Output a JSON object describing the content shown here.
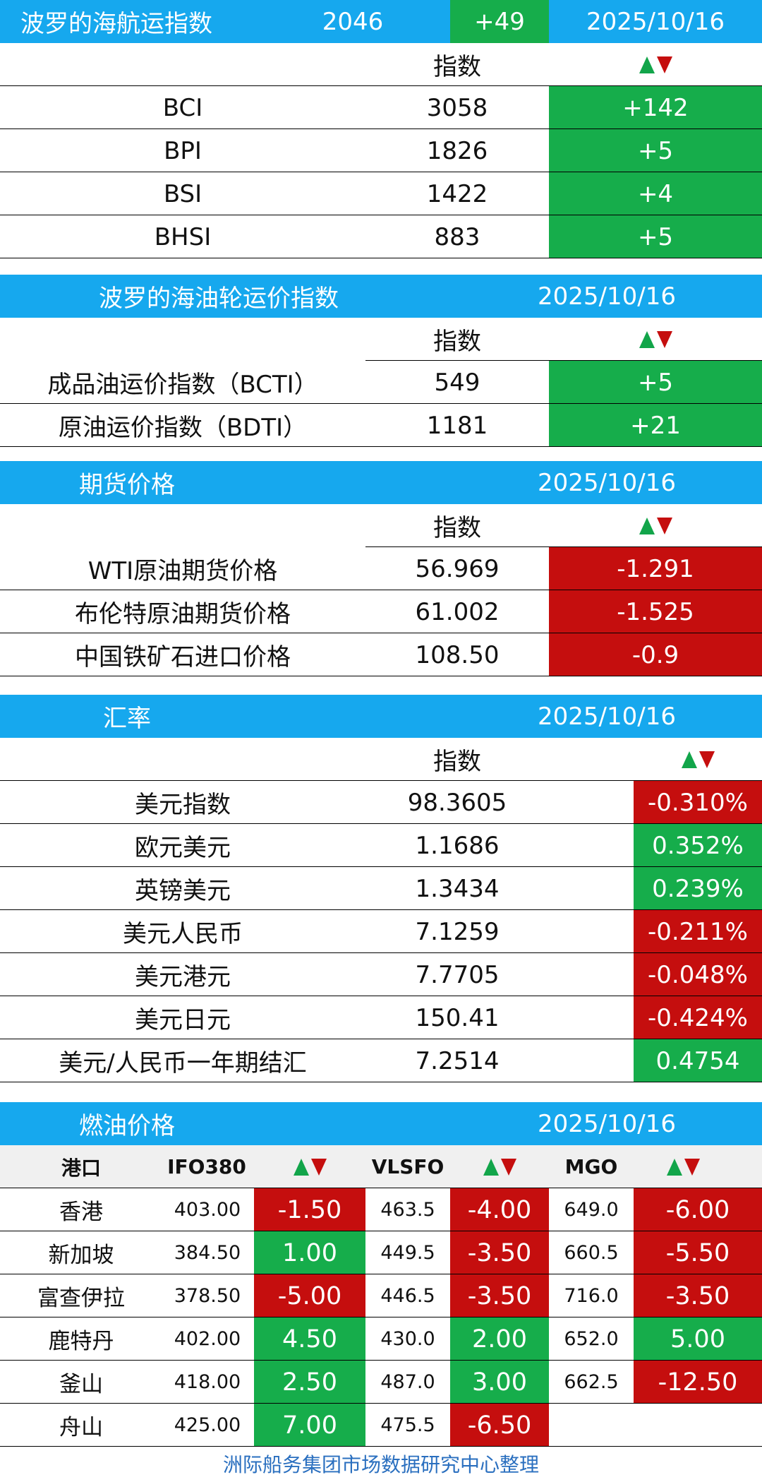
{
  "colors": {
    "header_bg": "#16a8ee",
    "up": "#16ad4b",
    "down": "#c50e0e",
    "footer_text": "#2a6fbf"
  },
  "bdi": {
    "title": "波罗的海航运指数",
    "value": "2046",
    "change": "+49",
    "date": "2025/10/16",
    "col_index": "指数",
    "rows": [
      {
        "name": "BCI",
        "value": "3058",
        "change": "+142"
      },
      {
        "name": "BPI",
        "value": "1826",
        "change": "+5"
      },
      {
        "name": "BSI",
        "value": "1422",
        "change": "+4"
      },
      {
        "name": "BHSI",
        "value": "883",
        "change": "+5"
      }
    ]
  },
  "tanker": {
    "title": "波罗的海油轮运价指数",
    "date": "2025/10/16",
    "col_index": "指数",
    "rows": [
      {
        "name": "成品油运价指数（BCTI）",
        "value": "549",
        "change": "+5"
      },
      {
        "name": "原油运价指数（BDTI）",
        "value": "1181",
        "change": "+21"
      }
    ]
  },
  "futures": {
    "title": "期货价格",
    "date": "2025/10/16",
    "col_index": "指数",
    "rows": [
      {
        "name": "WTI原油期货价格",
        "value": "56.969",
        "change": "-1.291"
      },
      {
        "name": "布伦特原油期货价格",
        "value": "61.002",
        "change": "-1.525"
      },
      {
        "name": "中国铁矿石进口价格",
        "value": "108.50",
        "change": "-0.9"
      }
    ]
  },
  "fx": {
    "title": "汇率",
    "date": "2025/10/16",
    "col_index": "指数",
    "rows": [
      {
        "name": "美元指数",
        "value": "98.3605",
        "change": "-0.310%"
      },
      {
        "name": "欧元美元",
        "value": "1.1686",
        "change": "0.352%"
      },
      {
        "name": "英镑美元",
        "value": "1.3434",
        "change": "0.239%"
      },
      {
        "name": "美元人民币",
        "value": "7.1259",
        "change": "-0.211%"
      },
      {
        "name": "美元港元",
        "value": "7.7705",
        "change": "-0.048%"
      },
      {
        "name": "美元日元",
        "value": "150.41",
        "change": "-0.424%"
      },
      {
        "name": "美元/人民币一年期结汇",
        "value": "7.2514",
        "change": "0.4754"
      }
    ]
  },
  "fuel": {
    "title": "燃油价格",
    "date": "2025/10/16",
    "headers": {
      "port": "港口",
      "ifo": "IFO380",
      "vlsfo": "VLSFO",
      "mgo": "MGO"
    },
    "rows": [
      {
        "port": "香港",
        "ifo": "403.00",
        "ifo_chg": "-1.50",
        "vlsfo": "463.5",
        "vlsfo_chg": "-4.00",
        "mgo": "649.0",
        "mgo_chg": "-6.00"
      },
      {
        "port": "新加坡",
        "ifo": "384.50",
        "ifo_chg": "1.00",
        "vlsfo": "449.5",
        "vlsfo_chg": "-3.50",
        "mgo": "660.5",
        "mgo_chg": "-5.50"
      },
      {
        "port": "富查伊拉",
        "ifo": "378.50",
        "ifo_chg": "-5.00",
        "vlsfo": "446.5",
        "vlsfo_chg": "-3.50",
        "mgo": "716.0",
        "mgo_chg": "-3.50"
      },
      {
        "port": "鹿特丹",
        "ifo": "402.00",
        "ifo_chg": "4.50",
        "vlsfo": "430.0",
        "vlsfo_chg": "2.00",
        "mgo": "652.0",
        "mgo_chg": "5.00"
      },
      {
        "port": "釜山",
        "ifo": "418.00",
        "ifo_chg": "2.50",
        "vlsfo": "487.0",
        "vlsfo_chg": "3.00",
        "mgo": "662.5",
        "mgo_chg": "-12.50"
      },
      {
        "port": "舟山",
        "ifo": "425.00",
        "ifo_chg": "7.00",
        "vlsfo": "475.5",
        "vlsfo_chg": "-6.50",
        "mgo": "",
        "mgo_chg": ""
      }
    ]
  },
  "footer": "洲际船务集团市场数据研究中心整理"
}
